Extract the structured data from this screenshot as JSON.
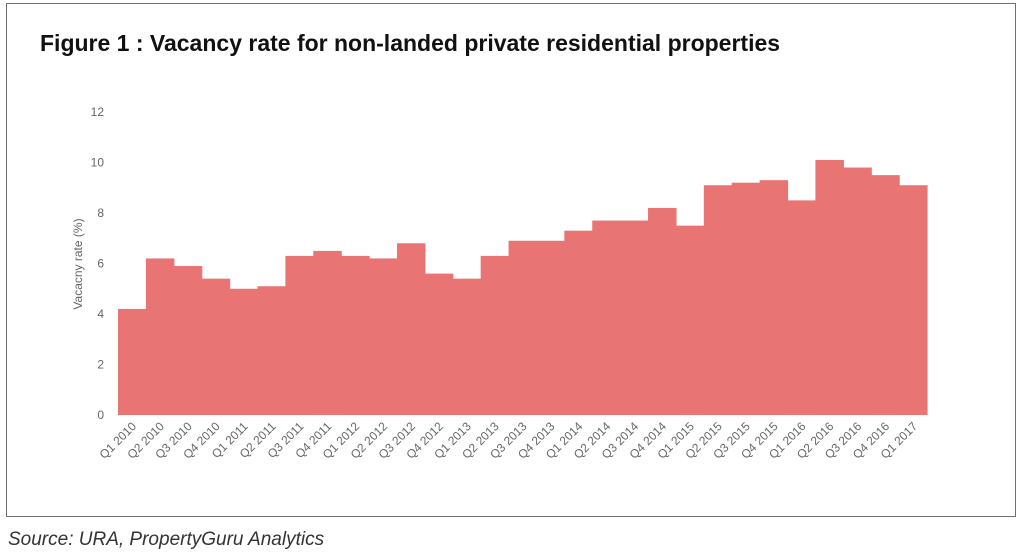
{
  "title": "Figure 1 : Vacancy rate for non-landed private residential properties",
  "source": "Source: URA, PropertyGuru Analytics",
  "chart_data": {
    "type": "bar",
    "title": "Figure 1 : Vacancy rate for non-landed private residential properties",
    "xlabel": "",
    "ylabel": "Vacacny rate (%)",
    "ylim": [
      0,
      12
    ],
    "yticks": [
      0,
      2,
      4,
      6,
      8,
      10,
      12
    ],
    "grid": false,
    "legend": "none",
    "bar_color": "#e87474",
    "categories": [
      "Q1 2010",
      "Q2 2010",
      "Q3 2010",
      "Q4 2010",
      "Q1 2011",
      "Q2 2011",
      "Q3 2011",
      "Q4 2011",
      "Q1 2012",
      "Q2 2012",
      "Q3 2012",
      "Q4 2012",
      "Q1 2013",
      "Q2 2013",
      "Q3 2013",
      "Q4 2013",
      "Q1 2014",
      "Q2 2014",
      "Q3 2014",
      "Q4 2014",
      "Q1 2015",
      "Q2 2015",
      "Q3 2015",
      "Q4 2015",
      "Q1 2016",
      "Q2 2016",
      "Q3 2016",
      "Q4 2016",
      "Q1 2017"
    ],
    "values": [
      4.2,
      6.2,
      5.9,
      5.4,
      5.0,
      5.1,
      6.3,
      6.5,
      6.3,
      6.2,
      6.8,
      5.6,
      5.4,
      6.3,
      6.9,
      6.9,
      7.3,
      7.7,
      7.7,
      8.2,
      7.5,
      9.1,
      9.2,
      9.3,
      8.5,
      10.1,
      9.8,
      9.5,
      9.1
    ]
  }
}
